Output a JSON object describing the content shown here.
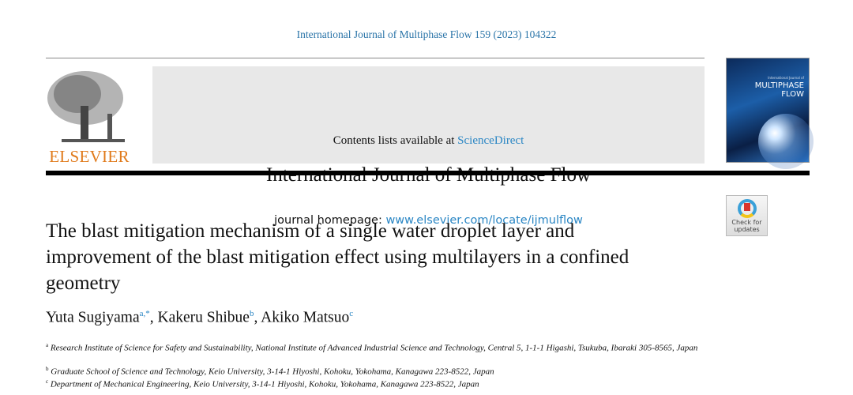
{
  "citation": "International Journal of Multiphase Flow 159 (2023) 104322",
  "header": {
    "contents_prefix": "Contents lists available at ",
    "contents_link": "ScienceDirect",
    "journal_title": "International Journal of Multiphase Flow",
    "homepage_prefix": "journal homepage: ",
    "homepage_link": "www.elsevier.com/locate/ijmulflow"
  },
  "logo": {
    "text": "ELSEVIER"
  },
  "cover": {
    "small": "International Journal of",
    "title_line1": "MULTIPHASE",
    "title_line2": "FLOW"
  },
  "check_updates": {
    "line1": "Check for",
    "line2": "updates"
  },
  "article": {
    "title": "The blast mitigation mechanism of a single water droplet layer and improvement of the blast mitigation effect using multilayers in a confined geometry",
    "authors": [
      {
        "name": "Yuta Sugiyama",
        "sup": "a,*"
      },
      {
        "name": "Kakeru Shibue",
        "sup": "b"
      },
      {
        "name": "Akiko Matsuo",
        "sup": "c"
      }
    ],
    "affiliations": [
      {
        "mark": "a",
        "text": "Research Institute of Science for Safety and Sustainability, National Institute of Advanced Industrial Science and Technology, Central 5, 1-1-1 Higashi, Tsukuba, Ibaraki 305-8565, Japan"
      },
      {
        "mark": "b",
        "text": "Graduate School of Science and Technology, Keio University, 3-14-1 Hiyoshi, Kohoku, Yokohama, Kanagawa 223-8522, Japan"
      },
      {
        "mark": "c",
        "text": "Department of Mechanical Engineering, Keio University, 3-14-1 Hiyoshi, Kohoku, Yokohama, Kanagawa 223-8522, Japan"
      }
    ]
  }
}
